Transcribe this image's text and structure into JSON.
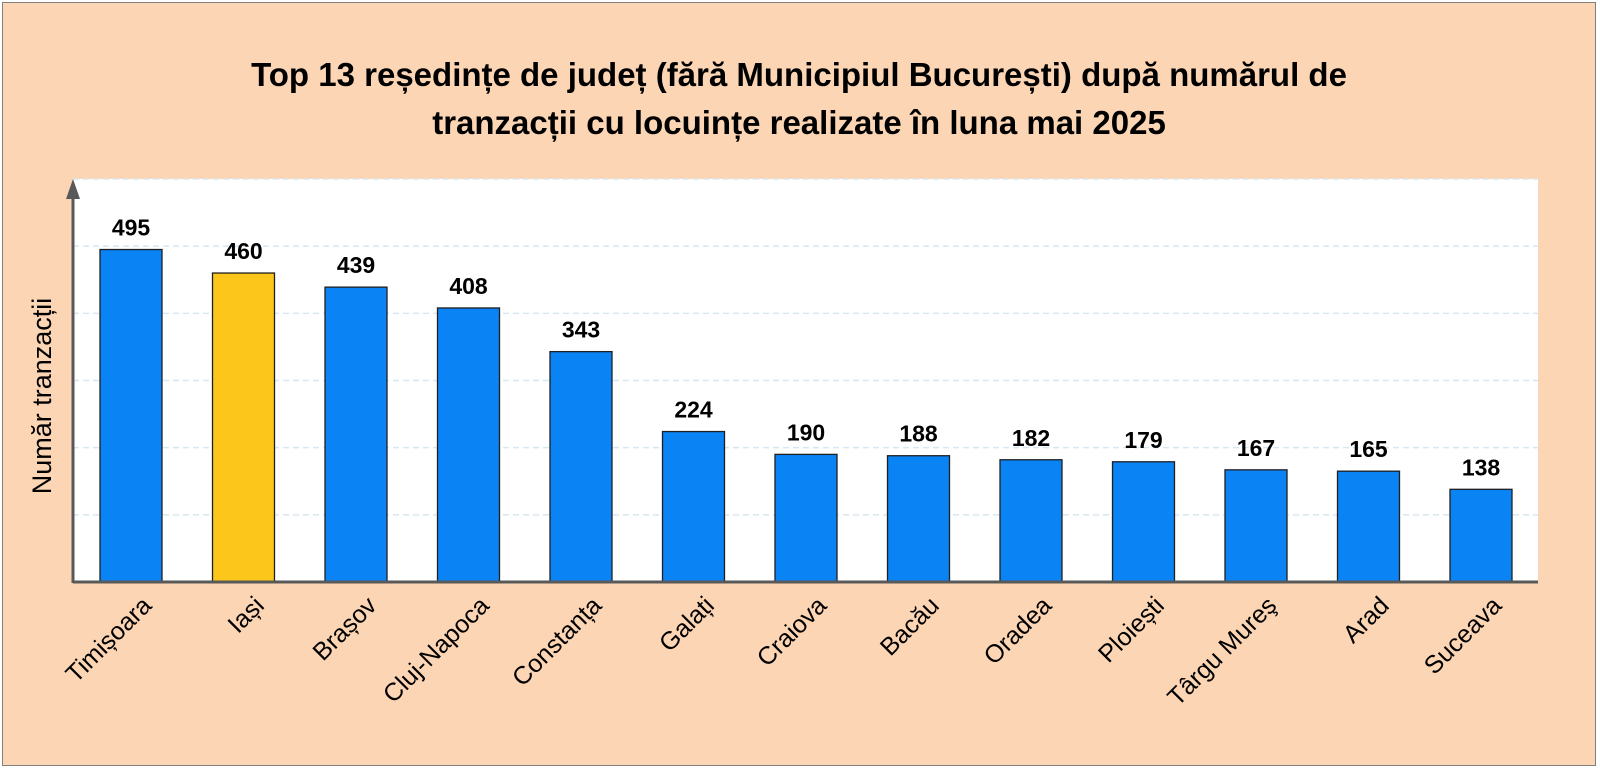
{
  "chart_data": {
    "type": "bar",
    "title_lines": [
      "Top 13 reședințe de județ (fără Municipiul București) după numărul de",
      "tranzacții cu locuințe realizate în luna mai 2025"
    ],
    "xlabel": "",
    "ylabel": "Număr tranzacții",
    "categories": [
      "Timișoara",
      "Iași",
      "Brașov",
      "Cluj-Napoca",
      "Constanța",
      "Galați",
      "Craiova",
      "Bacău",
      "Oradea",
      "Ploiești",
      "Târgu Mureş",
      "Arad",
      "Suceava"
    ],
    "values": [
      495,
      460,
      439,
      408,
      343,
      224,
      190,
      188,
      182,
      179,
      167,
      165,
      138
    ],
    "ylim": [
      0,
      600
    ],
    "grid": true,
    "colors": {
      "default": "#0a84f5",
      "highlight": "#fdc61a",
      "highlight_category": "Iași",
      "background": "#fcd5b4",
      "plot_background": "#ffffff",
      "gridline": "#d6e8ef",
      "axis": "#595959"
    }
  }
}
